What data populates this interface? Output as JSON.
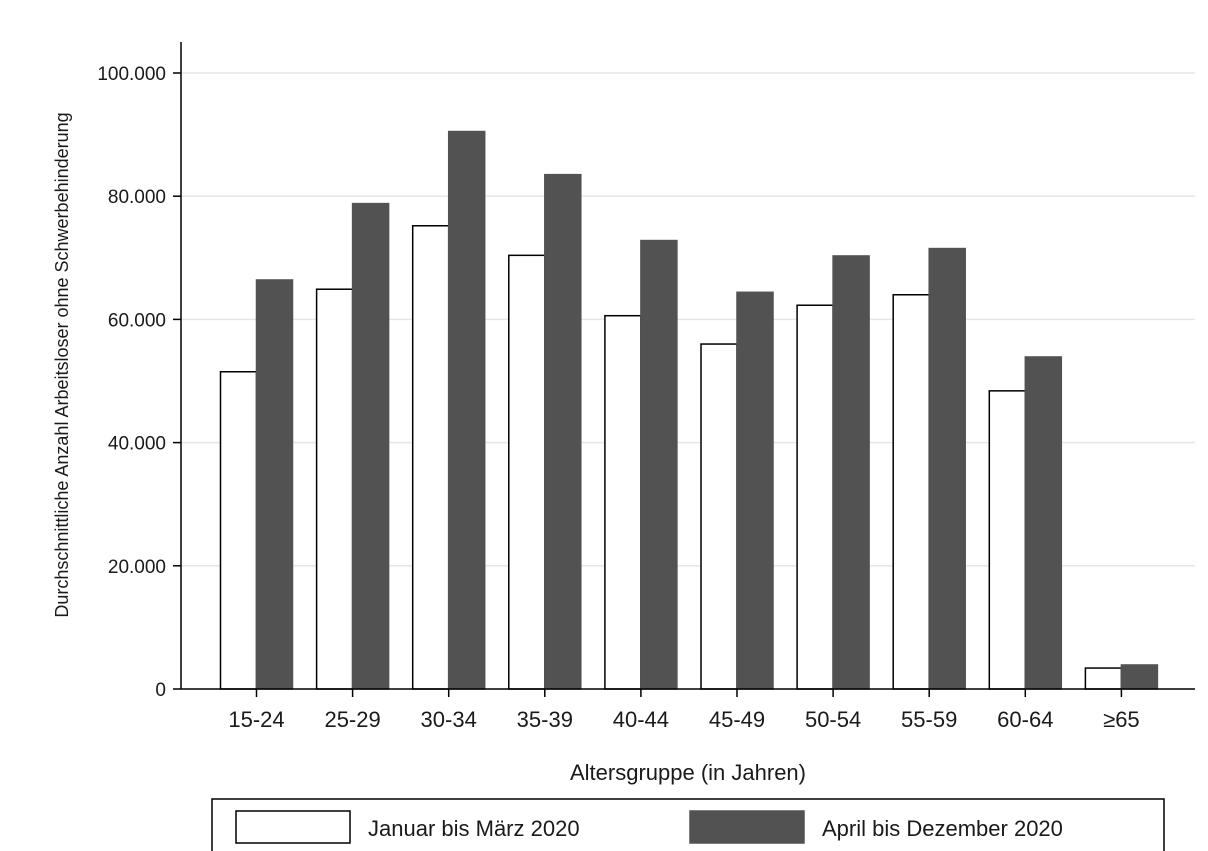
{
  "chart_data": {
    "type": "bar",
    "categories": [
      "15-24",
      "25-29",
      "30-34",
      "35-39",
      "40-44",
      "45-49",
      "50-54",
      "55-59",
      "60-64",
      "≥65"
    ],
    "series": [
      {
        "name": "Januar bis März 2020",
        "color": "#ffffff",
        "stroke": "#000000",
        "values": [
          51500,
          64900,
          75200,
          70400,
          60600,
          56000,
          62300,
          64000,
          48400,
          3400
        ]
      },
      {
        "name": "April bis Dezember 2020",
        "color": "#525252",
        "stroke": "#525252",
        "values": [
          66400,
          78800,
          90500,
          83500,
          72800,
          64400,
          70300,
          71500,
          53900,
          3900
        ]
      }
    ],
    "xlabel": "Altersgruppe (in Jahren)",
    "ylabel": "Durchschnittliche Anzahl Arbeitsloser ohne Schwerbehinderung",
    "ylim": [
      0,
      100000
    ],
    "yticks": [
      0,
      20000,
      40000,
      60000,
      80000,
      100000
    ],
    "ytick_labels": [
      "0",
      "20.000",
      "40.000",
      "60.000",
      "80.000",
      "100.000"
    ],
    "grid": "horizontal",
    "legend_position": "bottom"
  }
}
